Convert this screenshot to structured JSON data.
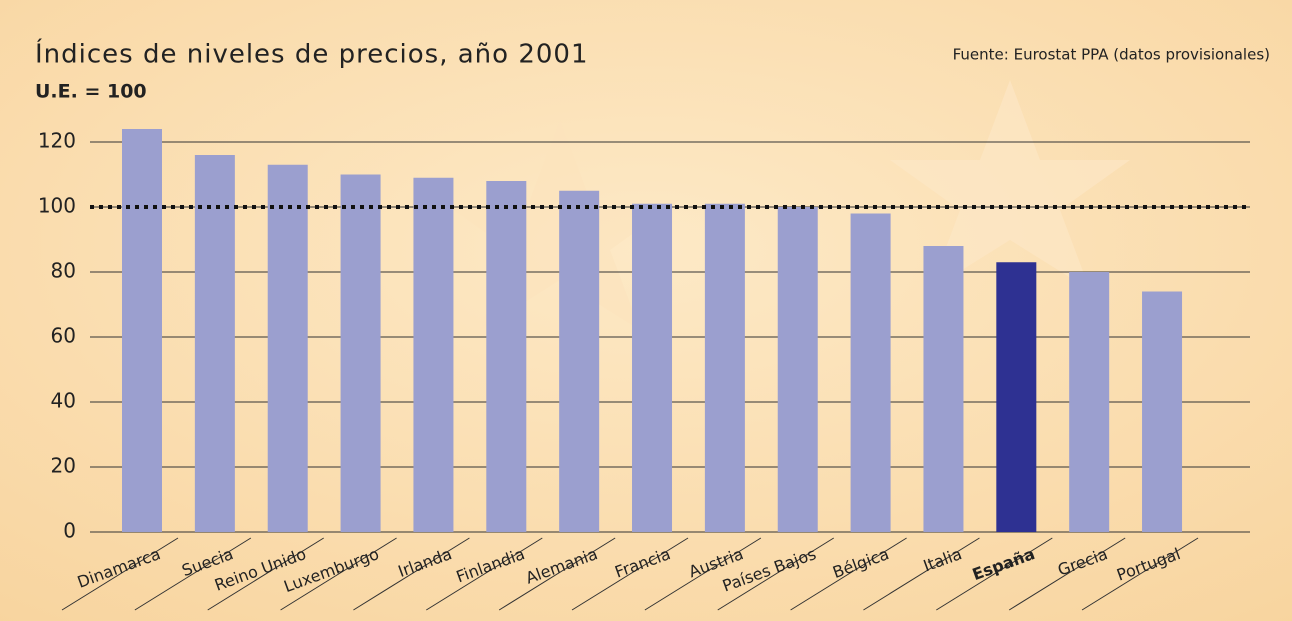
{
  "chart_data": {
    "type": "bar",
    "title": "Índices de niveles de precios, año 2001",
    "subtitle": "U.E. = 100",
    "source": "Fuente: Eurostat PPA (datos provisionales)",
    "categories": [
      "Dinamarca",
      "Suecia",
      "Reino Unido",
      "Luxemburgo",
      "Irlanda",
      "Finlandia",
      "Alemania",
      "Francia",
      "Austria",
      "Países Bajos",
      "Bélgica",
      "Italia",
      "España",
      "Grecia",
      "Portugal"
    ],
    "values": [
      124,
      116,
      113,
      110,
      109,
      108,
      105,
      101,
      101,
      100,
      98,
      88,
      83,
      80,
      74
    ],
    "colors": [
      "#9b9fcf",
      "#9b9fcf",
      "#9b9fcf",
      "#9b9fcf",
      "#9b9fcf",
      "#9b9fcf",
      "#9b9fcf",
      "#9b9fcf",
      "#9b9fcf",
      "#9b9fcf",
      "#9b9fcf",
      "#9b9fcf",
      "#2e3192",
      "#9b9fcf",
      "#9b9fcf"
    ],
    "reference_line": 100,
    "ylim": [
      0,
      120
    ],
    "yticks": [
      0,
      20,
      40,
      60,
      80,
      100,
      120
    ],
    "grid": true
  }
}
